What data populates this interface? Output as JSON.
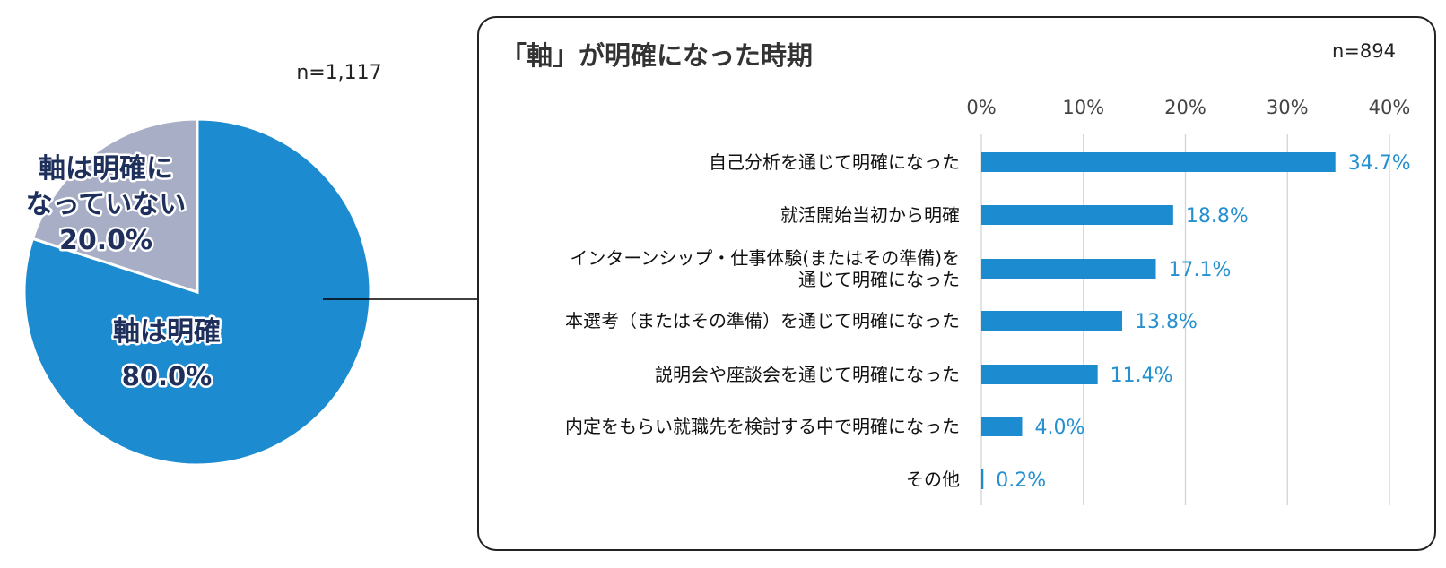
{
  "colors": {
    "main": "#1c8bd0",
    "other": "#a8aec6",
    "label": "#1f2f5c",
    "bar": "#1c8bd0"
  },
  "pie": {
    "n": "n=1,117",
    "slices": [
      {
        "lines": [
          "軸は明確",
          "80.0%"
        ],
        "value": 80.0
      },
      {
        "lines": [
          "軸は明確に",
          "なっていない",
          "20.0%"
        ],
        "value": 20.0
      }
    ]
  },
  "bar": {
    "title": "「軸」が明確になった時期",
    "n": "n=894",
    "ticks": [
      "0%",
      "10%",
      "20%",
      "30%",
      "40%"
    ]
  },
  "chart_data": [
    {
      "type": "pie",
      "n": "n=1,117",
      "labels": [
        "軸は明確",
        "軸は明確になっていない"
      ],
      "values": [
        80.0,
        20.0
      ]
    },
    {
      "type": "bar",
      "orientation": "horizontal",
      "title": "「軸」が明確になった時期",
      "n": "n=894",
      "categories": [
        [
          "自己分析を通じて明確になった"
        ],
        [
          "就活開始当初から明確"
        ],
        [
          "インターンシップ・仕事体験(またはその準備)を",
          "通じて明確になった"
        ],
        [
          "本選考（またはその準備）を通じて明確になった"
        ],
        [
          "説明会や座談会を通じて明確になった"
        ],
        [
          "内定をもらい就職先を検討する中で明確になった"
        ],
        [
          "その他"
        ]
      ],
      "values": [
        34.7,
        18.8,
        17.1,
        13.8,
        11.4,
        4.0,
        0.2
      ],
      "value_labels": [
        "34.7%",
        "18.8%",
        "17.1%",
        "13.8%",
        "11.4%",
        "4.0%",
        "0.2%"
      ],
      "xlim": [
        0,
        40
      ],
      "ticks": [
        0,
        10,
        20,
        30,
        40
      ],
      "grid": true,
      "axis_position": "top"
    }
  ]
}
